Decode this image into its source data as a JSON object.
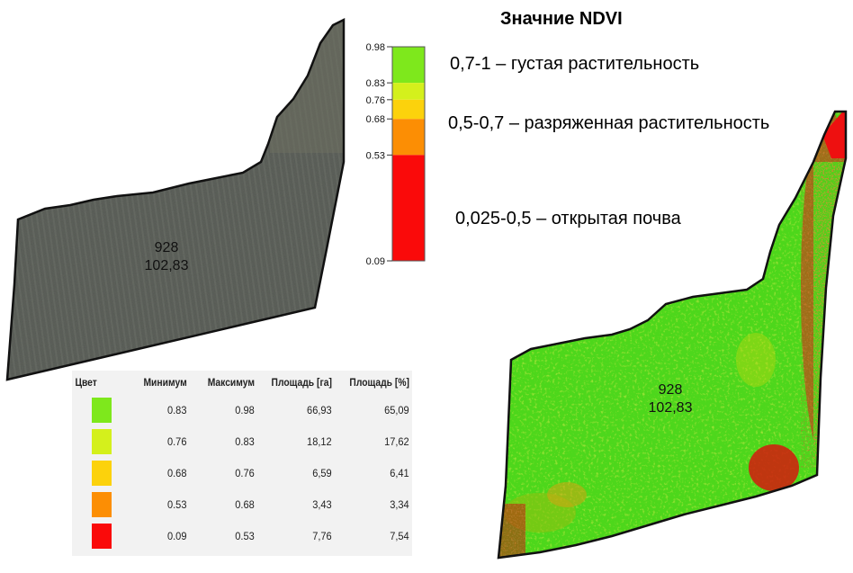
{
  "title": "Значние NDVI",
  "annotations": [
    "0,7-1 – густая растительность",
    "0,5-0,7 – разряженная растительность",
    "0,025-0,5 – открытая почва"
  ],
  "field_photo": {
    "label_line1": "928",
    "label_line2": "102,83"
  },
  "field_ndvi": {
    "label_line1": "928",
    "label_line2": "102,83"
  },
  "scale": {
    "ticks": [
      {
        "label": "0.98",
        "value": 0.98
      },
      {
        "label": "0.83",
        "value": 0.83
      },
      {
        "label": "0.76",
        "value": 0.76
      },
      {
        "label": "0.68",
        "value": 0.68
      },
      {
        "label": "0.53",
        "value": 0.53
      },
      {
        "label": "0.09",
        "value": 0.09
      }
    ],
    "bands": [
      {
        "from": 0.83,
        "to": 0.98,
        "color": "#7ee81c"
      },
      {
        "from": 0.76,
        "to": 0.83,
        "color": "#d4f01c"
      },
      {
        "from": 0.68,
        "to": 0.76,
        "color": "#fcd20c"
      },
      {
        "from": 0.53,
        "to": 0.68,
        "color": "#fc8e04"
      },
      {
        "from": 0.09,
        "to": 0.53,
        "color": "#fa0a0a"
      }
    ]
  },
  "stats": {
    "headers": [
      "Цвет",
      "Минимум",
      "Максимум",
      "Площадь [га]",
      "Площадь [%]"
    ],
    "rows": [
      {
        "color": "#7ee81c",
        "min": "0.83",
        "max": "0.98",
        "area_ha": "66,93",
        "area_pct": "65,09"
      },
      {
        "color": "#d4f01c",
        "min": "0.76",
        "max": "0.83",
        "area_ha": "18,12",
        "area_pct": "17,62"
      },
      {
        "color": "#fcd20c",
        "min": "0.68",
        "max": "0.76",
        "area_ha": "6,59",
        "area_pct": "6,41"
      },
      {
        "color": "#fc8e04",
        "min": "0.53",
        "max": "0.68",
        "area_ha": "3,43",
        "area_pct": "3,34"
      },
      {
        "color": "#fa0a0a",
        "min": "0.09",
        "max": "0.53",
        "area_ha": "7,76",
        "area_pct": "7,54"
      }
    ]
  }
}
